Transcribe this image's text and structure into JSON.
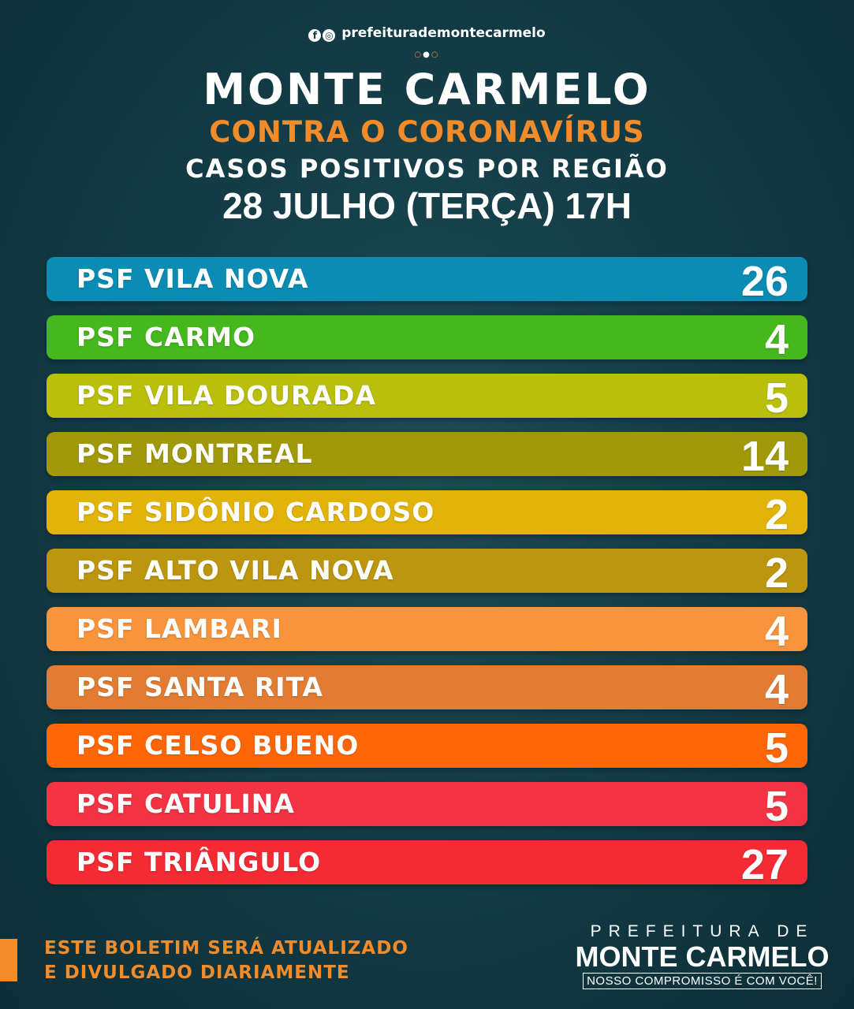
{
  "header": {
    "social_handle": "prefeiturademontecarmelo",
    "title": "MONTE CARMELO",
    "subtitle": "CONTRA O CORONAVÍRUS",
    "heading": "CASOS POSITIVOS POR REGIÃO",
    "date": "28 JULHO (TERÇA) 17H"
  },
  "regions": [
    {
      "label": "PSF VILA NOVA",
      "value": "26",
      "color": "#0a8cb4"
    },
    {
      "label": "PSF CARMO",
      "value": "4",
      "color": "#44b81c"
    },
    {
      "label": "PSF VILA DOURADA",
      "value": "5",
      "color": "#b9bf0a"
    },
    {
      "label": "PSF MONTREAL",
      "value": "14",
      "color": "#a09a0a"
    },
    {
      "label": "PSF SIDÔNIO CARDOSO",
      "value": "2",
      "color": "#e2b40a"
    },
    {
      "label": "PSF ALTO VILA NOVA",
      "value": "2",
      "color": "#bb960e"
    },
    {
      "label": "PSF LAMBARI",
      "value": "4",
      "color": "#f7943c"
    },
    {
      "label": "PSF SANTA RITA",
      "value": "4",
      "color": "#e17c32"
    },
    {
      "label": "PSF CELSO BUENO",
      "value": "5",
      "color": "#ff6608"
    },
    {
      "label": "PSF CATULINA",
      "value": "5",
      "color": "#f43344"
    },
    {
      "label": "PSF TRIÂNGULO",
      "value": "27",
      "color": "#f42a34"
    }
  ],
  "footer": {
    "line1": "ESTE BOLETIM SERÁ ATUALIZADO",
    "line2": "E DIVULGADO DIARIAMENTE",
    "logo_line1": "PREFEITURA DE",
    "logo_line2": "MONTE CARMELO",
    "logo_line3": "NOSSO COMPROMISSO É COM VOCÊ!"
  }
}
